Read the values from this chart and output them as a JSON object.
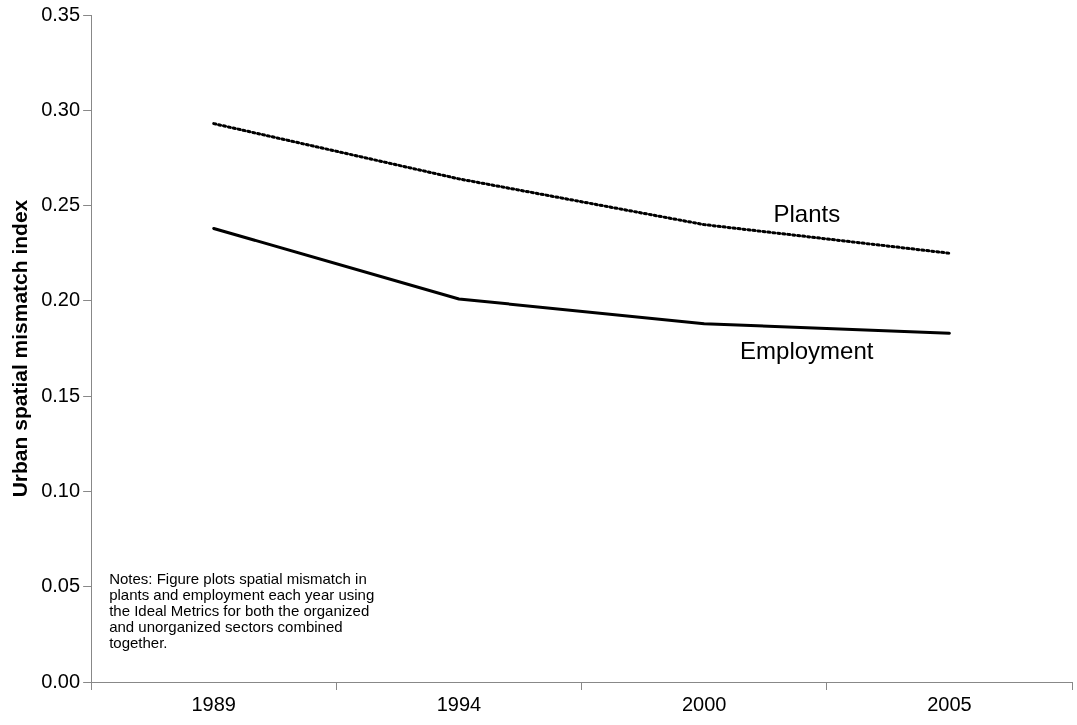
{
  "chart_data": {
    "type": "line",
    "ylabel": "Urban spatial mismatch index",
    "categories": [
      "1989",
      "1994",
      "2000",
      "2005"
    ],
    "series": [
      {
        "name": "Plants",
        "color": "#000000",
        "line_style": "dotted",
        "values": [
          0.293,
          0.264,
          0.24,
          0.225
        ]
      },
      {
        "name": "Employment",
        "color": "#000000",
        "line_style": "solid",
        "values": [
          0.238,
          0.201,
          0.188,
          0.183
        ]
      }
    ],
    "ylim": [
      0,
      0.35
    ],
    "yticks": [
      {
        "value": 0,
        "label": "0.00"
      },
      {
        "value": 0.05,
        "label": "0.05"
      },
      {
        "value": 0.1,
        "label": "0.10"
      },
      {
        "value": 0.15,
        "label": "0.15"
      },
      {
        "value": 0.2,
        "label": "0.20"
      },
      {
        "value": 0.25,
        "label": "0.25"
      },
      {
        "value": 0.3,
        "label": "0.30"
      },
      {
        "value": 0.35,
        "label": "0.35"
      }
    ],
    "grid": false,
    "legend": false,
    "marker": "none",
    "annotations": [
      "Notes: Figure plots spatial mismatch in plants and employment each year using the Ideal Metrics for both the organized and unorganized sectors combined together."
    ]
  }
}
